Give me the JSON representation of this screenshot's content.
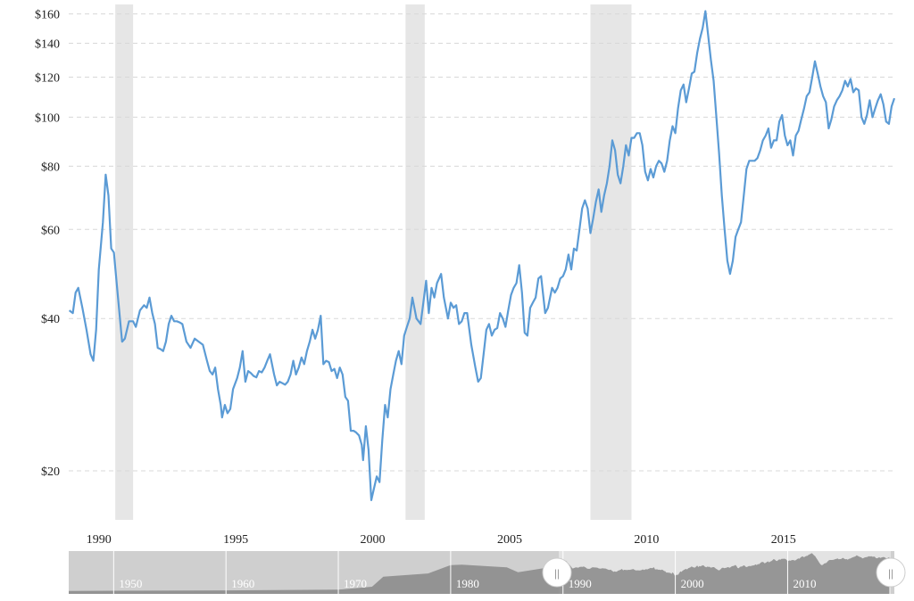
{
  "colors": {
    "line": "#5b9bd5",
    "recession_band": "#e6e6e6",
    "grid": "#d8d8d8",
    "navigator_bg": "#cfcfcf",
    "navigator_selected": "#e3e3e3",
    "navigator_area": "#888888"
  },
  "chart_data": {
    "type": "line",
    "y_scale": "log",
    "title": "",
    "xlabel": "",
    "ylabel": "",
    "grid": true,
    "ylim": [
      16,
      165
    ],
    "xlim": [
      1988.9,
      2019.05
    ],
    "y_ticks": [
      {
        "value": 20,
        "label": "$20"
      },
      {
        "value": 40,
        "label": "$40"
      },
      {
        "value": 60,
        "label": "$60"
      },
      {
        "value": 80,
        "label": "$80"
      },
      {
        "value": 100,
        "label": "$100"
      },
      {
        "value": 120,
        "label": "$120"
      },
      {
        "value": 140,
        "label": "$140"
      },
      {
        "value": 160,
        "label": "$160"
      }
    ],
    "x_ticks": [
      {
        "value": 1990,
        "label": "1990"
      },
      {
        "value": 1995,
        "label": "1995"
      },
      {
        "value": 2000,
        "label": "2000"
      },
      {
        "value": 2005,
        "label": "2005"
      },
      {
        "value": 2010,
        "label": "2010"
      },
      {
        "value": 2015,
        "label": "2015"
      }
    ],
    "recessions": [
      [
        1990.6,
        1991.25
      ],
      [
        2001.2,
        2001.9
      ],
      [
        2007.95,
        2009.45
      ]
    ],
    "series": [
      {
        "points": [
          [
            1988.92,
            41.5
          ],
          [
            1989.05,
            41
          ],
          [
            1989.15,
            45
          ],
          [
            1989.25,
            46
          ],
          [
            1989.4,
            42
          ],
          [
            1989.55,
            38
          ],
          [
            1989.7,
            34
          ],
          [
            1989.8,
            33
          ],
          [
            1989.9,
            38
          ],
          [
            1990.0,
            50
          ],
          [
            1990.15,
            62
          ],
          [
            1990.25,
            77
          ],
          [
            1990.35,
            70
          ],
          [
            1990.45,
            55
          ],
          [
            1990.55,
            54
          ],
          [
            1990.7,
            44
          ],
          [
            1990.85,
            36
          ],
          [
            1990.95,
            36.5
          ],
          [
            1991.1,
            39.5
          ],
          [
            1991.25,
            39.5
          ],
          [
            1991.35,
            38.5
          ],
          [
            1991.5,
            41.5
          ],
          [
            1991.65,
            42.5
          ],
          [
            1991.75,
            42
          ],
          [
            1991.85,
            44
          ],
          [
            1991.95,
            41
          ],
          [
            1992.05,
            39
          ],
          [
            1992.15,
            35
          ],
          [
            1992.25,
            34.8
          ],
          [
            1992.35,
            34.5
          ],
          [
            1992.45,
            36
          ],
          [
            1992.55,
            39
          ],
          [
            1992.65,
            40.5
          ],
          [
            1992.75,
            39.5
          ],
          [
            1992.85,
            39.5
          ],
          [
            1992.95,
            39.3
          ],
          [
            1993.05,
            39
          ],
          [
            1993.2,
            36
          ],
          [
            1993.35,
            35
          ],
          [
            1993.5,
            36.5
          ],
          [
            1993.65,
            36
          ],
          [
            1993.8,
            35.5
          ],
          [
            1993.95,
            33
          ],
          [
            1994.05,
            31.5
          ],
          [
            1994.15,
            31
          ],
          [
            1994.25,
            32
          ],
          [
            1994.35,
            29
          ],
          [
            1994.45,
            27
          ],
          [
            1994.5,
            25.5
          ],
          [
            1994.6,
            27
          ],
          [
            1994.7,
            26
          ],
          [
            1994.8,
            26.5
          ],
          [
            1994.9,
            29
          ],
          [
            1995.05,
            30.5
          ],
          [
            1995.15,
            32
          ],
          [
            1995.25,
            34.5
          ],
          [
            1995.35,
            30
          ],
          [
            1995.45,
            31.5
          ],
          [
            1995.55,
            31.2
          ],
          [
            1995.65,
            30.8
          ],
          [
            1995.75,
            30.6
          ],
          [
            1995.85,
            31.5
          ],
          [
            1995.95,
            31.3
          ],
          [
            1996.05,
            32
          ],
          [
            1996.15,
            33
          ],
          [
            1996.25,
            34
          ],
          [
            1996.4,
            31
          ],
          [
            1996.5,
            29.5
          ],
          [
            1996.6,
            30
          ],
          [
            1996.7,
            29.8
          ],
          [
            1996.8,
            29.6
          ],
          [
            1996.9,
            30
          ],
          [
            1997.0,
            31
          ],
          [
            1997.1,
            33
          ],
          [
            1997.2,
            31
          ],
          [
            1997.3,
            32
          ],
          [
            1997.4,
            33.5
          ],
          [
            1997.5,
            32.5
          ],
          [
            1997.6,
            34.5
          ],
          [
            1997.7,
            36
          ],
          [
            1997.8,
            38
          ],
          [
            1997.9,
            36.5
          ],
          [
            1998.0,
            38
          ],
          [
            1998.1,
            40.5
          ],
          [
            1998.2,
            32.5
          ],
          [
            1998.3,
            33
          ],
          [
            1998.4,
            32.8
          ],
          [
            1998.5,
            31.5
          ],
          [
            1998.6,
            31.8
          ],
          [
            1998.7,
            30.5
          ],
          [
            1998.8,
            32
          ],
          [
            1998.9,
            31
          ],
          [
            1999.0,
            28
          ],
          [
            1999.1,
            27.5
          ],
          [
            1999.2,
            24
          ],
          [
            1999.3,
            24
          ],
          [
            1999.4,
            23.8
          ],
          [
            1999.5,
            23.5
          ],
          [
            1999.6,
            22.5
          ],
          [
            1999.65,
            21
          ],
          [
            1999.75,
            24.5
          ],
          [
            1999.85,
            22
          ],
          [
            1999.95,
            17.5
          ],
          [
            2000.05,
            18.5
          ],
          [
            2000.15,
            19.5
          ],
          [
            2000.25,
            19
          ],
          [
            2000.35,
            23
          ],
          [
            2000.45,
            27
          ],
          [
            2000.55,
            25.5
          ],
          [
            2000.65,
            29
          ],
          [
            2000.75,
            31
          ],
          [
            2000.85,
            33
          ],
          [
            2000.95,
            34.5
          ],
          [
            2001.05,
            32.5
          ],
          [
            2001.15,
            37
          ],
          [
            2001.25,
            38.5
          ],
          [
            2001.35,
            40
          ],
          [
            2001.45,
            44
          ],
          [
            2001.6,
            40
          ],
          [
            2001.75,
            39
          ],
          [
            2001.85,
            43
          ],
          [
            2001.95,
            47.5
          ],
          [
            2002.05,
            41
          ],
          [
            2002.15,
            46
          ],
          [
            2002.25,
            44
          ],
          [
            2002.35,
            47
          ],
          [
            2002.5,
            49
          ],
          [
            2002.6,
            44
          ],
          [
            2002.75,
            40
          ],
          [
            2002.85,
            43
          ],
          [
            2002.95,
            42
          ],
          [
            2003.05,
            42.5
          ],
          [
            2003.15,
            39
          ],
          [
            2003.25,
            39.5
          ],
          [
            2003.35,
            41
          ],
          [
            2003.45,
            41
          ],
          [
            2003.6,
            35.5
          ],
          [
            2003.75,
            32
          ],
          [
            2003.85,
            30
          ],
          [
            2003.95,
            30.5
          ],
          [
            2004.05,
            34
          ],
          [
            2004.15,
            38
          ],
          [
            2004.25,
            39
          ],
          [
            2004.35,
            37
          ],
          [
            2004.45,
            38
          ],
          [
            2004.55,
            38.3
          ],
          [
            2004.65,
            41
          ],
          [
            2004.75,
            40
          ],
          [
            2004.85,
            38.5
          ],
          [
            2004.95,
            41.5
          ],
          [
            2005.05,
            44.5
          ],
          [
            2005.15,
            46
          ],
          [
            2005.25,
            47
          ],
          [
            2005.35,
            51
          ],
          [
            2005.45,
            45
          ],
          [
            2005.55,
            37.5
          ],
          [
            2005.65,
            37
          ],
          [
            2005.75,
            42
          ],
          [
            2005.85,
            43
          ],
          [
            2005.95,
            44
          ],
          [
            2006.05,
            48
          ],
          [
            2006.15,
            48.5
          ],
          [
            2006.3,
            41
          ],
          [
            2006.4,
            42
          ],
          [
            2006.55,
            46
          ],
          [
            2006.65,
            45
          ],
          [
            2006.75,
            46
          ],
          [
            2006.85,
            48
          ],
          [
            2006.95,
            48.5
          ],
          [
            2007.05,
            50
          ],
          [
            2007.15,
            53.5
          ],
          [
            2007.25,
            50
          ],
          [
            2007.35,
            55
          ],
          [
            2007.45,
            54.5
          ],
          [
            2007.55,
            60
          ],
          [
            2007.65,
            66
          ],
          [
            2007.75,
            68.5
          ],
          [
            2007.85,
            66
          ],
          [
            2007.95,
            59
          ],
          [
            2008.05,
            63
          ],
          [
            2008.15,
            68
          ],
          [
            2008.25,
            72
          ],
          [
            2008.35,
            65
          ],
          [
            2008.45,
            70
          ],
          [
            2008.55,
            74
          ],
          [
            2008.65,
            80
          ],
          [
            2008.75,
            90
          ],
          [
            2008.85,
            86
          ],
          [
            2008.95,
            77
          ],
          [
            2009.05,
            74
          ],
          [
            2009.15,
            80
          ],
          [
            2009.25,
            88
          ],
          [
            2009.35,
            84
          ],
          [
            2009.45,
            91
          ],
          [
            2009.55,
            91
          ],
          [
            2009.65,
            93
          ],
          [
            2009.75,
            93
          ],
          [
            2009.85,
            88
          ],
          [
            2009.95,
            78
          ],
          [
            2010.05,
            75
          ],
          [
            2010.15,
            79
          ],
          [
            2010.25,
            76
          ],
          [
            2010.35,
            80
          ],
          [
            2010.45,
            82
          ],
          [
            2010.55,
            81
          ],
          [
            2010.65,
            78
          ],
          [
            2010.75,
            82
          ],
          [
            2010.85,
            90
          ],
          [
            2010.95,
            96
          ],
          [
            2011.05,
            93
          ],
          [
            2011.15,
            104
          ],
          [
            2011.25,
            113
          ],
          [
            2011.35,
            116
          ],
          [
            2011.45,
            107
          ],
          [
            2011.55,
            114
          ],
          [
            2011.65,
            122
          ],
          [
            2011.75,
            123
          ],
          [
            2011.85,
            134
          ],
          [
            2011.95,
            143
          ],
          [
            2012.05,
            150
          ],
          [
            2012.15,
            162
          ],
          [
            2012.25,
            145
          ],
          [
            2012.35,
            130
          ],
          [
            2012.45,
            118
          ],
          [
            2012.55,
            100
          ],
          [
            2012.65,
            85
          ],
          [
            2012.75,
            70
          ],
          [
            2012.85,
            60
          ],
          [
            2012.95,
            52
          ],
          [
            2013.05,
            49
          ],
          [
            2013.15,
            52
          ],
          [
            2013.25,
            58
          ],
          [
            2013.35,
            60
          ],
          [
            2013.45,
            62
          ],
          [
            2013.55,
            70
          ],
          [
            2013.65,
            79
          ],
          [
            2013.75,
            82
          ],
          [
            2013.85,
            82
          ],
          [
            2013.95,
            82
          ],
          [
            2014.05,
            83
          ],
          [
            2014.15,
            86
          ],
          [
            2014.25,
            90
          ],
          [
            2014.35,
            92
          ],
          [
            2014.45,
            95
          ],
          [
            2014.55,
            87
          ],
          [
            2014.65,
            90
          ],
          [
            2014.75,
            90
          ],
          [
            2014.85,
            98
          ],
          [
            2014.95,
            101
          ],
          [
            2015.05,
            92
          ],
          [
            2015.15,
            88
          ],
          [
            2015.25,
            90
          ],
          [
            2015.35,
            84
          ],
          [
            2015.45,
            92
          ],
          [
            2015.55,
            94
          ],
          [
            2015.65,
            99
          ],
          [
            2015.75,
            104
          ],
          [
            2015.85,
            110
          ],
          [
            2015.95,
            112
          ],
          [
            2016.05,
            120
          ],
          [
            2016.15,
            129
          ],
          [
            2016.25,
            122
          ],
          [
            2016.35,
            115
          ],
          [
            2016.45,
            110
          ],
          [
            2016.55,
            107
          ],
          [
            2016.65,
            95
          ],
          [
            2016.75,
            99
          ],
          [
            2016.85,
            105
          ],
          [
            2016.95,
            108
          ],
          [
            2017.05,
            110
          ],
          [
            2017.15,
            113
          ],
          [
            2017.25,
            118
          ],
          [
            2017.35,
            115
          ],
          [
            2017.45,
            119
          ],
          [
            2017.55,
            112
          ],
          [
            2017.65,
            114
          ],
          [
            2017.75,
            113
          ],
          [
            2017.85,
            100
          ],
          [
            2017.95,
            97
          ],
          [
            2018.05,
            101
          ],
          [
            2018.15,
            108
          ],
          [
            2018.25,
            100
          ],
          [
            2018.35,
            104
          ],
          [
            2018.45,
            108
          ],
          [
            2018.55,
            111
          ],
          [
            2018.65,
            106
          ],
          [
            2018.75,
            98
          ],
          [
            2018.85,
            97
          ],
          [
            2018.95,
            105
          ],
          [
            2019.05,
            109
          ]
        ]
      }
    ]
  },
  "navigator": {
    "ticks": [
      "1950",
      "1960",
      "1970",
      "1980",
      "1990",
      "2000",
      "2010"
    ],
    "handle_left_label": "||",
    "handle_right_label": "||"
  }
}
